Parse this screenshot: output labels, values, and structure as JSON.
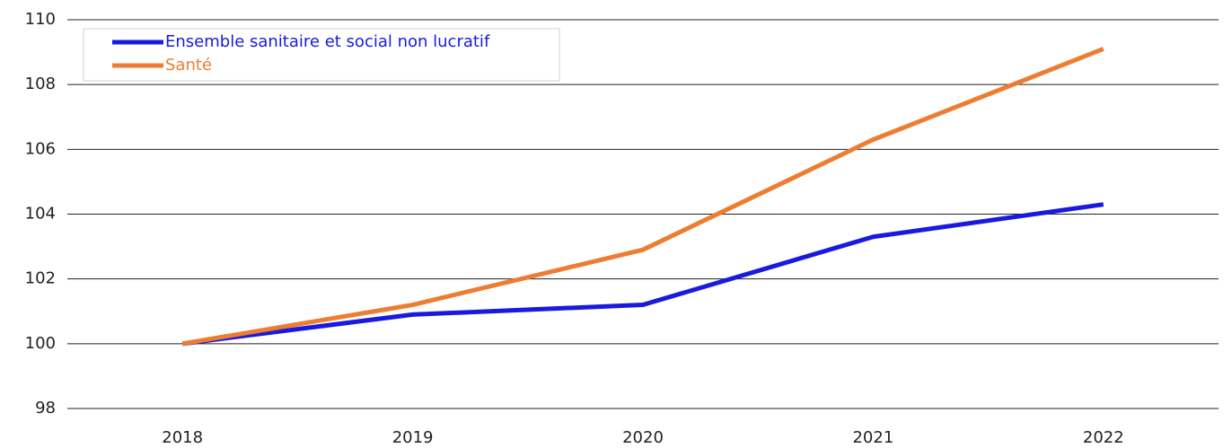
{
  "chart_data": {
    "type": "line",
    "categories": [
      "2018",
      "2019",
      "2020",
      "2021",
      "2022"
    ],
    "series": [
      {
        "name": "Ensemble sanitaire et social non lucratif",
        "color": "#1a1adf",
        "values": [
          100,
          100.9,
          101.2,
          103.3,
          104.3
        ]
      },
      {
        "name": "Santé",
        "color": "#ed7d31",
        "values": [
          100,
          101.2,
          102.9,
          106.3,
          109.1
        ]
      }
    ],
    "ylim": [
      98,
      110
    ],
    "yticks": [
      98,
      100,
      102,
      104,
      106,
      108,
      110
    ],
    "grid": true,
    "legend": "top-left"
  }
}
